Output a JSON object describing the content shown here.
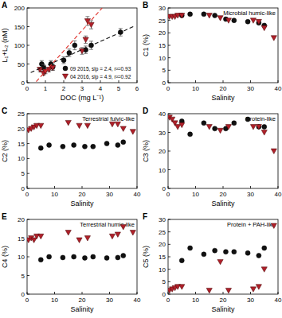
{
  "chart_data": [
    {
      "type": "scatter",
      "title": "A",
      "x_label": "DOC (mg L⁻¹)",
      "y_label": "L₁+L₂ (nM)",
      "xlim": [
        0,
        6
      ],
      "xticks": [
        0,
        1,
        2,
        3,
        4,
        5,
        6
      ],
      "ylim": [
        0,
        200
      ],
      "yticks": [
        0,
        50,
        100,
        150,
        200
      ],
      "grid": false,
      "legend": "lower right",
      "series": [
        {
          "name": "09 2015, slp = 2.4, r²=0.93",
          "color": "#111111",
          "marker": "circle",
          "x": [
            0.8,
            0.9,
            1.3,
            1.4,
            2.0,
            2.3,
            2.6,
            3.2,
            3.5,
            5.1
          ],
          "values": [
            50,
            40,
            50,
            42,
            60,
            80,
            100,
            88,
            100,
            135
          ],
          "errors": [
            9,
            8,
            9,
            8,
            9,
            10,
            12,
            10,
            11,
            10
          ]
        },
        {
          "name": "04 2016, slp = 4.9, r²=0.92",
          "color": "#b0202a",
          "marker": "triangle",
          "x": [
            0.7,
            0.9,
            1.0,
            1.2,
            1.4,
            3.0,
            3.2,
            3.3,
            3.5
          ],
          "values": [
            35,
            25,
            30,
            35,
            40,
            85,
            115,
            165,
            155
          ],
          "errors": [
            6,
            5,
            6,
            6,
            7,
            9,
            10,
            12,
            11
          ]
        },
        {
          "type": "line",
          "line_style": "dashed",
          "color": "#111111",
          "x": [
            0.2,
            5.8
          ],
          "values": [
            27,
            150
          ]
        },
        {
          "type": "line",
          "line_style": "dashed",
          "color": "#e0302a",
          "x": [
            0.5,
            4.1
          ],
          "values": [
            3,
            200
          ]
        }
      ]
    },
    {
      "type": "scatter",
      "title": "B",
      "annotation": "Microbial humic-like",
      "x_label": "Salinity",
      "y_label": "C1 (%)",
      "xlim": [
        0,
        40
      ],
      "xticks": [
        0,
        10,
        20,
        30,
        40
      ],
      "ylim": [
        0,
        30
      ],
      "yticks": [
        0,
        5,
        10,
        15,
        20,
        25,
        30
      ],
      "grid": false,
      "series": [
        {
          "color": "#111111",
          "marker": "circle",
          "x": [
            5,
            8,
            13,
            17,
            21,
            24,
            29,
            33,
            35
          ],
          "values": [
            27,
            27.5,
            27.5,
            27,
            25.5,
            25,
            24.5,
            24,
            23
          ]
        },
        {
          "color": "#b0202a",
          "marker": "triangle",
          "x": [
            0.5,
            1.5,
            2.5,
            3.5,
            5,
            15,
            19,
            22,
            31,
            33,
            35,
            38.5
          ],
          "values": [
            26.5,
            26.5,
            26.5,
            27,
            27,
            27,
            26,
            25,
            25,
            24.5,
            22,
            18
          ]
        }
      ]
    },
    {
      "type": "scatter",
      "title": "C",
      "annotation": "Terrestrial fulvic-like",
      "x_label": "Salinity",
      "y_label": "C2 (%)",
      "xlim": [
        0,
        40
      ],
      "xticks": [
        0,
        10,
        20,
        30,
        40
      ],
      "ylim": [
        0,
        25
      ],
      "yticks": [
        0,
        5,
        10,
        15,
        20,
        25
      ],
      "grid": false,
      "series": [
        {
          "color": "#111111",
          "marker": "circle",
          "x": [
            5,
            8,
            13,
            17,
            21,
            24,
            29,
            33,
            35
          ],
          "values": [
            13.5,
            14.5,
            14,
            14.5,
            14,
            14,
            15,
            14.5,
            15.5
          ]
        },
        {
          "color": "#b0202a",
          "marker": "triangle",
          "x": [
            0.5,
            1.5,
            2.5,
            3.5,
            5,
            15,
            19,
            22,
            31,
            33,
            35,
            38.5
          ],
          "values": [
            19.5,
            20,
            20.5,
            21,
            21,
            22,
            21,
            21,
            21.5,
            21.5,
            20,
            19
          ]
        }
      ]
    },
    {
      "type": "scatter",
      "title": "D",
      "annotation": "Protein-like",
      "x_label": "Salinity",
      "y_label": "C3 (%)",
      "xlim": [
        0,
        40
      ],
      "xticks": [
        0,
        10,
        20,
        30,
        40
      ],
      "ylim": [
        0,
        40
      ],
      "yticks": [
        0,
        10,
        20,
        30,
        40
      ],
      "grid": false,
      "series": [
        {
          "color": "#111111",
          "marker": "circle",
          "x": [
            5,
            8,
            13,
            17,
            21,
            24,
            29,
            33,
            35
          ],
          "values": [
            36,
            29,
            35,
            32,
            32,
            35,
            37,
            33,
            33
          ]
        },
        {
          "color": "#b0202a",
          "marker": "triangle",
          "x": [
            0.5,
            1.5,
            2.5,
            3.5,
            5,
            15,
            19,
            22,
            31,
            33,
            35,
            38.5
          ],
          "values": [
            38,
            37,
            35,
            33,
            34,
            33,
            31,
            33,
            33,
            33,
            30,
            20
          ]
        }
      ]
    },
    {
      "type": "scatter",
      "title": "E",
      "annotation": "Terrestrial humic-like",
      "x_label": "Salinity",
      "y_label": "C4 (%)",
      "xlim": [
        0,
        40
      ],
      "xticks": [
        0,
        10,
        20,
        30,
        40
      ],
      "ylim": [
        0,
        20
      ],
      "yticks": [
        0,
        5,
        10,
        15,
        20
      ],
      "grid": false,
      "series": [
        {
          "color": "#111111",
          "marker": "circle",
          "x": [
            5,
            8,
            13,
            17,
            21,
            24,
            29,
            33,
            35
          ],
          "values": [
            9.2,
            10,
            9.8,
            10,
            9.7,
            10,
            9.7,
            9.8,
            10.3
          ]
        },
        {
          "color": "#b0202a",
          "marker": "triangle",
          "x": [
            0.5,
            1.5,
            2.5,
            3.5,
            5,
            15,
            19,
            22,
            31,
            33,
            35,
            38.5
          ],
          "values": [
            14.5,
            15,
            14.5,
            15.5,
            15.5,
            16.5,
            14.5,
            15,
            15.5,
            16,
            18,
            16.5
          ]
        }
      ]
    },
    {
      "type": "scatter",
      "title": "F",
      "annotation": "Protein + PAH-like",
      "x_label": "Salinity",
      "y_label": "C5 (%)",
      "xlim": [
        0,
        40
      ],
      "xticks": [
        0,
        10,
        20,
        30,
        40
      ],
      "ylim": [
        0,
        30
      ],
      "yticks": [
        0,
        5,
        10,
        15,
        20,
        25,
        30
      ],
      "grid": false,
      "series": [
        {
          "color": "#111111",
          "marker": "circle",
          "x": [
            5,
            8,
            13,
            17,
            21,
            24,
            29,
            33,
            35
          ],
          "values": [
            13.5,
            18.5,
            16,
            17.5,
            17,
            17,
            16.5,
            15.5,
            18.5
          ]
        },
        {
          "color": "#b0202a",
          "marker": "triangle",
          "x": [
            0.5,
            1.5,
            2.5,
            3.5,
            5,
            15,
            19,
            22,
            31,
            33,
            35,
            38.5
          ],
          "values": [
            1.5,
            2,
            2.5,
            3,
            3,
            1.5,
            13,
            1.5,
            2,
            3,
            10,
            27.5
          ]
        }
      ]
    }
  ]
}
